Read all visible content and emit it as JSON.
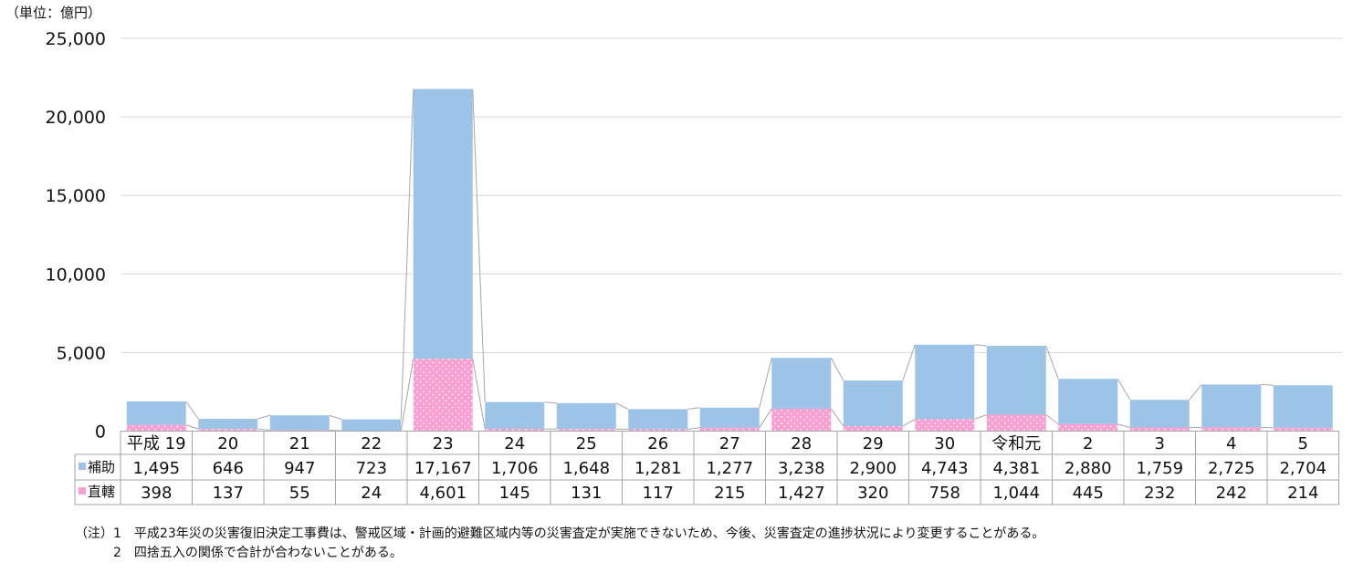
{
  "unit_label": "（単位：億円）",
  "notes": [
    "（注）1　平成23年災の災害復旧決定工事費は、警戒区域・計画的避難区域内等の災害査定が実施できないため、今後、災害査定の進捗状況により変更することがある。",
    "　　　2　四捨五入の関係で合計が合わないことがある。"
  ],
  "chart_data": {
    "type": "bar",
    "stacked": true,
    "categories": [
      "平成 19",
      "20",
      "21",
      "22",
      "23",
      "24",
      "25",
      "26",
      "27",
      "28",
      "29",
      "30",
      "令和元",
      "2",
      "3",
      "4",
      "5"
    ],
    "series": [
      {
        "name": "直轄",
        "color": "#f99fd2",
        "pattern": "dotted",
        "values": [
          398,
          137,
          55,
          24,
          4601,
          145,
          131,
          117,
          215,
          1427,
          320,
          758,
          1044,
          445,
          232,
          242,
          214
        ]
      },
      {
        "name": "補助",
        "color": "#9dc3e6",
        "values": [
          1495,
          646,
          947,
          723,
          17167,
          1706,
          1648,
          1281,
          1277,
          3238,
          2900,
          4743,
          4381,
          2880,
          1759,
          2725,
          2704
        ]
      }
    ],
    "table_rows": [
      {
        "label": "補助",
        "values": [
          "1,495",
          "646",
          "947",
          "723",
          "17,167",
          "1,706",
          "1,648",
          "1,281",
          "1,277",
          "3,238",
          "2,900",
          "4,743",
          "4,381",
          "2,880",
          "1,759",
          "2,725",
          "2,704"
        ]
      },
      {
        "label": "直轄",
        "values": [
          "398",
          "137",
          "55",
          "24",
          "4,601",
          "145",
          "131",
          "117",
          "215",
          "1,427",
          "320",
          "758",
          "1,044",
          "445",
          "232",
          "242",
          "214"
        ]
      }
    ],
    "yticks": [
      "0",
      "5,000",
      "10,000",
      "15,000",
      "20,000",
      "25,000"
    ],
    "ylim": [
      0,
      25000
    ],
    "grid": true,
    "connector_lines": true,
    "legend": "in-table"
  }
}
